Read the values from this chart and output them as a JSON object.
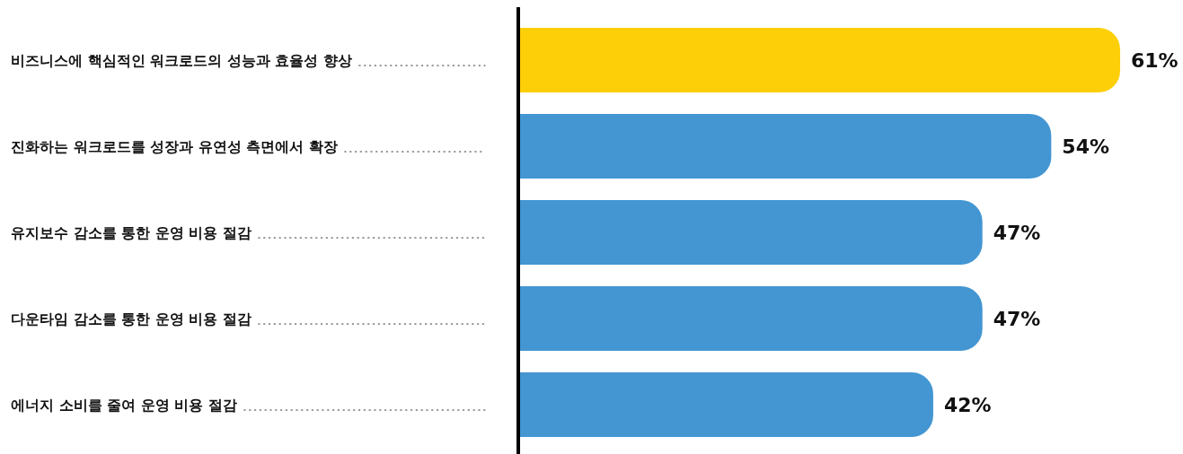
{
  "chart_data": {
    "type": "bar",
    "orientation": "horizontal",
    "categories": [
      "비즈니스에 핵심적인 워크로드의 성능과 효율성 향상",
      "진화하는 워크로드를 성장과 유연성 측면에서 확장",
      "유지보수 감소를 통한 운영 비용 절감",
      "다운타임 감소를 통한 운영 비용 절감",
      "에너지 소비를 줄여 운영 비용 절감"
    ],
    "values": [
      61,
      54,
      47,
      47,
      42
    ],
    "colors": [
      "#fccf08",
      "#4396d2",
      "#4396d2",
      "#4396d2",
      "#4396d2"
    ],
    "value_labels": [
      "61%",
      "54%",
      "47%",
      "47%",
      "42%"
    ]
  }
}
